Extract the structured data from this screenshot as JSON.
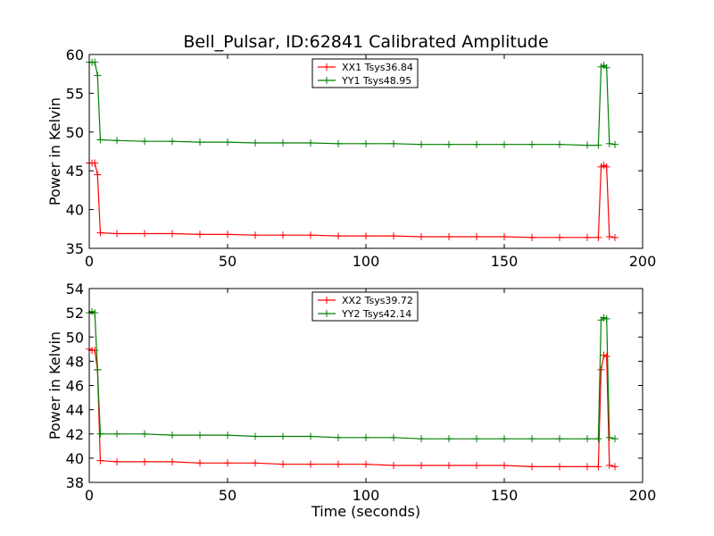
{
  "figure": {
    "title": "Bell_Pulsar, ID:62841 Calibrated Amplitude",
    "xlabel": "Time (seconds)"
  },
  "colors": {
    "xx": "#ff0000",
    "yy": "#008000"
  },
  "chart_data": [
    {
      "type": "line",
      "ylabel": "Power in Kelvin",
      "xlim": [
        0,
        200
      ],
      "ylim": [
        35,
        60
      ],
      "xticks": [
        0,
        50,
        100,
        150,
        200
      ],
      "yticks": [
        35,
        40,
        45,
        50,
        55,
        60
      ],
      "legend_position": "top-center",
      "series": [
        {
          "name": "XX1 Tsys36.84",
          "color_key": "xx",
          "x": [
            0,
            1,
            2,
            3,
            4,
            10,
            20,
            30,
            40,
            50,
            60,
            70,
            80,
            90,
            100,
            110,
            120,
            130,
            140,
            150,
            160,
            170,
            180,
            184,
            185,
            186,
            187,
            188,
            190
          ],
          "y": [
            46.0,
            46.0,
            46.0,
            44.5,
            37.0,
            36.9,
            36.9,
            36.9,
            36.8,
            36.8,
            36.7,
            36.7,
            36.7,
            36.6,
            36.6,
            36.6,
            36.5,
            36.5,
            36.5,
            36.5,
            36.4,
            36.4,
            36.4,
            36.4,
            45.5,
            45.7,
            45.5,
            36.5,
            36.4
          ]
        },
        {
          "name": "YY1 Tsys48.95",
          "color_key": "yy",
          "x": [
            0,
            1,
            2,
            3,
            4,
            10,
            20,
            30,
            40,
            50,
            60,
            70,
            80,
            90,
            100,
            110,
            120,
            130,
            140,
            150,
            160,
            170,
            180,
            184,
            185,
            186,
            187,
            188,
            190
          ],
          "y": [
            59.0,
            59.0,
            59.0,
            57.3,
            49.0,
            48.9,
            48.8,
            48.8,
            48.7,
            48.7,
            48.6,
            48.6,
            48.6,
            48.5,
            48.5,
            48.5,
            48.4,
            48.4,
            48.4,
            48.4,
            48.4,
            48.4,
            48.3,
            48.3,
            58.4,
            58.6,
            58.3,
            48.5,
            48.4
          ]
        }
      ]
    },
    {
      "type": "line",
      "ylabel": "Power in Kelvin",
      "xlabel": "Time (seconds)",
      "xlim": [
        0,
        200
      ],
      "ylim": [
        38,
        54
      ],
      "xticks": [
        0,
        50,
        100,
        150,
        200
      ],
      "yticks": [
        38,
        40,
        42,
        44,
        46,
        48,
        50,
        52,
        54
      ],
      "legend_position": "top-center",
      "series": [
        {
          "name": "XX2 Tsys39.72",
          "color_key": "xx",
          "x": [
            0,
            1,
            2,
            3,
            4,
            10,
            20,
            30,
            40,
            50,
            60,
            70,
            80,
            90,
            100,
            110,
            120,
            130,
            140,
            150,
            160,
            170,
            180,
            184,
            185,
            186,
            187,
            188,
            190
          ],
          "y": [
            49.0,
            48.9,
            48.9,
            47.3,
            39.8,
            39.7,
            39.7,
            39.7,
            39.6,
            39.6,
            39.6,
            39.5,
            39.5,
            39.5,
            39.5,
            39.4,
            39.4,
            39.4,
            39.4,
            39.4,
            39.3,
            39.3,
            39.3,
            39.3,
            47.3,
            48.5,
            48.4,
            39.4,
            39.3
          ]
        },
        {
          "name": "YY2 Tsys42.14",
          "color_key": "yy",
          "x": [
            0,
            1,
            2,
            3,
            4,
            10,
            20,
            30,
            40,
            50,
            60,
            70,
            80,
            90,
            100,
            110,
            120,
            130,
            140,
            150,
            160,
            170,
            180,
            184,
            185,
            186,
            187,
            188,
            190
          ],
          "y": [
            52.0,
            52.1,
            52.0,
            47.3,
            42.0,
            42.0,
            42.0,
            41.9,
            41.9,
            41.9,
            41.8,
            41.8,
            41.8,
            41.7,
            41.7,
            41.7,
            41.6,
            41.6,
            41.6,
            41.6,
            41.6,
            41.6,
            41.6,
            41.6,
            51.4,
            51.6,
            51.5,
            41.7,
            41.6
          ]
        }
      ]
    }
  ]
}
